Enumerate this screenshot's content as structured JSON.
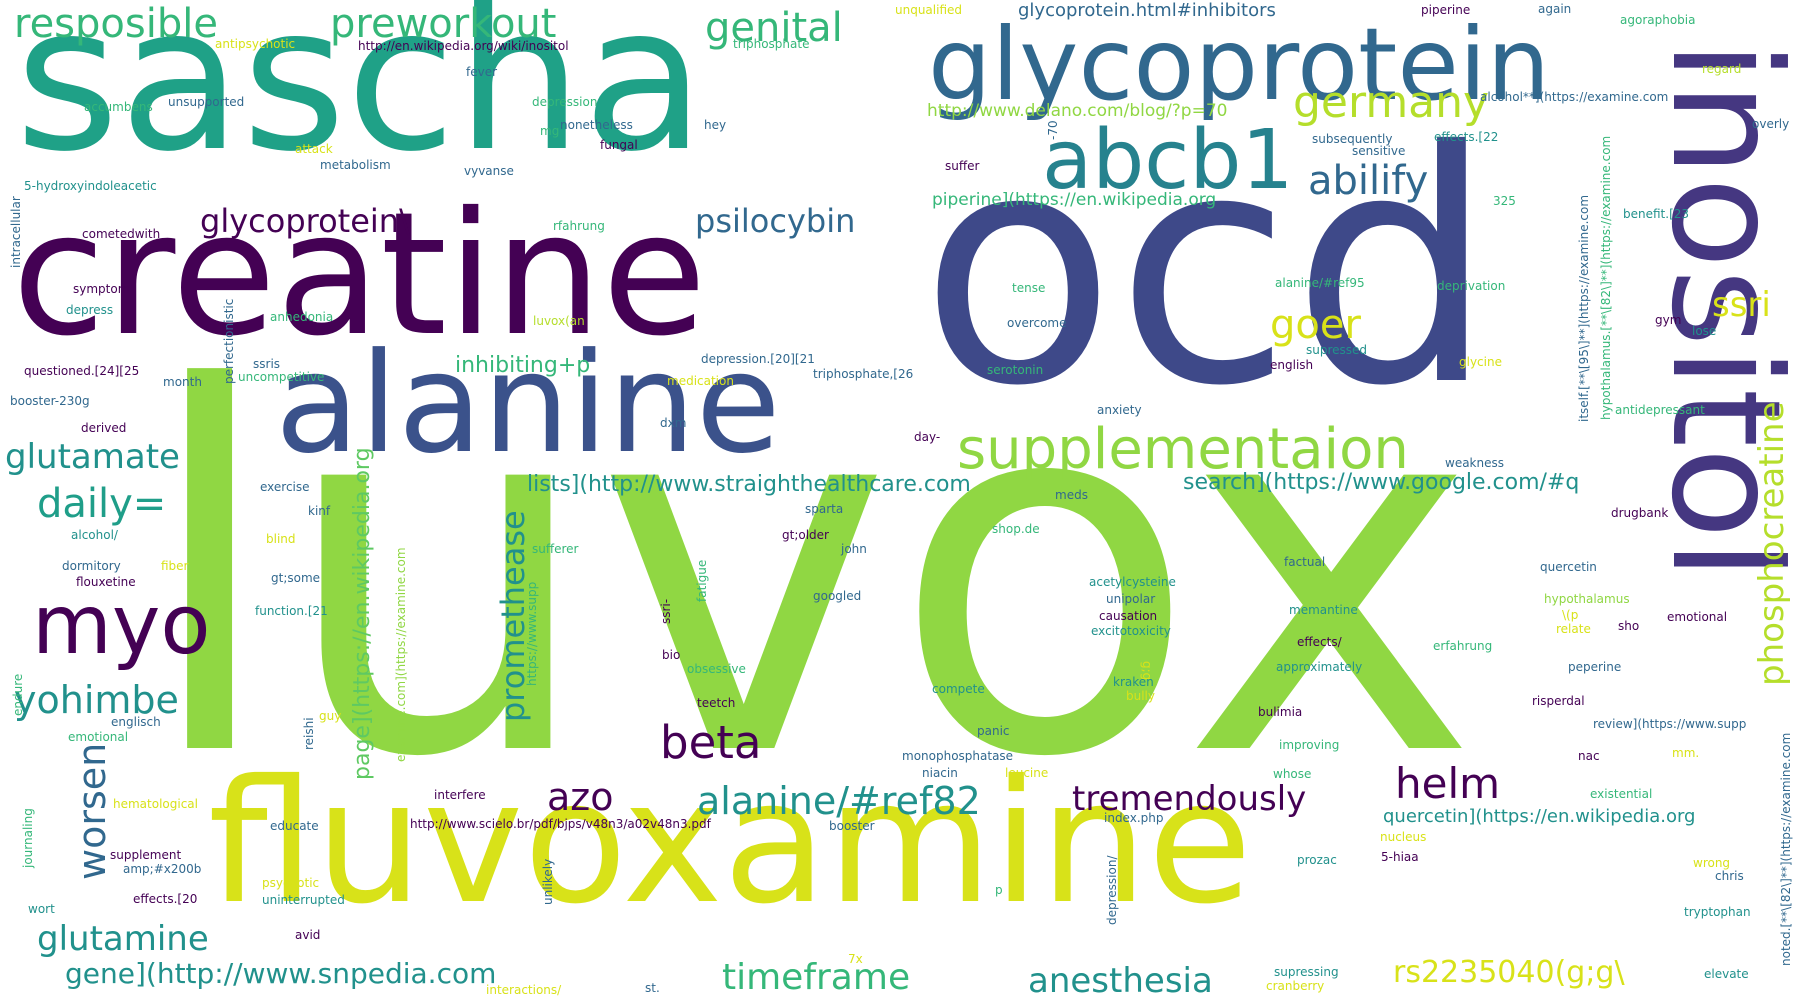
{
  "palette": [
    "#440154",
    "#3b528b",
    "#31688e",
    "#21918c",
    "#35b779",
    "#90d743",
    "#d8e219"
  ],
  "words": [
    {
      "text": "luvox",
      "color": "#90d743"
    },
    {
      "text": "ocd",
      "color": "#3e4989"
    },
    {
      "text": "sascha",
      "color": "#1fa187"
    },
    {
      "text": "creatine",
      "color": "#440154"
    },
    {
      "text": "fluvoxamine",
      "color": "#d8e219"
    },
    {
      "text": "alanine",
      "color": "#3b528b"
    },
    {
      "text": "inositol",
      "color": "#453781"
    },
    {
      "text": "glycoprotein",
      "color": "#31688e"
    },
    {
      "text": "abcb1",
      "color": "#26828e"
    },
    {
      "text": "supplementaion",
      "color": "#90d743"
    },
    {
      "text": "myo",
      "color": "#440154"
    },
    {
      "text": "resposible",
      "color": "#35b779"
    },
    {
      "text": "preworkout",
      "color": "#35b779"
    },
    {
      "text": "genital",
      "color": "#35b779"
    },
    {
      "text": "germany",
      "color": "#b5de2b"
    },
    {
      "text": "abilify",
      "color": "#31688e"
    },
    {
      "text": "glycoprotein\\",
      "color": "#440154"
    },
    {
      "text": "psilocybin",
      "color": "#31688e"
    },
    {
      "text": "goer",
      "color": "#d8e219"
    },
    {
      "text": "ssri",
      "color": "#d8e219"
    },
    {
      "text": "phosphocreatine",
      "color": "#b5de2b"
    },
    {
      "text": "glutamate",
      "color": "#21918c"
    },
    {
      "text": "daily=",
      "color": "#1f9e89"
    },
    {
      "text": "yohimbe",
      "color": "#21918c"
    },
    {
      "text": "worsen",
      "color": "#31688e"
    },
    {
      "text": "glutamine",
      "color": "#21918c"
    },
    {
      "text": "beta",
      "color": "#440154"
    },
    {
      "text": "azo",
      "color": "#440154"
    },
    {
      "text": "alanine/#ref82",
      "color": "#21918c"
    },
    {
      "text": "tremendously",
      "color": "#440154"
    },
    {
      "text": "helm",
      "color": "#440154"
    },
    {
      "text": "promethease",
      "color": "#21918c"
    },
    {
      "text": "timeframe",
      "color": "#35b779"
    },
    {
      "text": "anesthesia",
      "color": "#21918c"
    },
    {
      "text": "gene](http://www.snpedia.com",
      "color": "#21918c"
    },
    {
      "text": "rs2235040(g;g\\",
      "color": "#d8e219"
    },
    {
      "text": "lists](http://www.straighthealthcare.com",
      "color": "#21918c"
    },
    {
      "text": "search](https://www.google.com/#q",
      "color": "#21918c"
    },
    {
      "text": "inhibiting+p",
      "color": "#35b779"
    },
    {
      "text": "page](https://en.wikipedia.org",
      "color": "#5ec962"
    },
    {
      "text": "quercetin](https://en.wikipedia.org",
      "color": "#21918c"
    },
    {
      "text": "http://www.delano.com/blog/?p=70",
      "color": "#90d743"
    },
    {
      "text": "piperine](https://en.wikipedia.org",
      "color": "#35b779"
    },
    {
      "text": "glycoprotein.html#inhibitors",
      "color": "#31688e"
    },
    {
      "text": "http://en.wikipedia.org/wiki/inositol",
      "color": "#440154"
    },
    {
      "text": "http://www.scielo.br/pdf/bjps/v48n3/a02v48n3.pdf",
      "color": "#440154"
    },
    {
      "text": "antipsychotic",
      "color": "#d8e219"
    },
    {
      "text": "triphosphate",
      "color": "#35b779"
    },
    {
      "text": "unqualified",
      "color": "#d8e219"
    },
    {
      "text": "piperine",
      "color": "#440154"
    },
    {
      "text": "again",
      "color": "#31688e"
    },
    {
      "text": "agoraphobia",
      "color": "#35b779"
    },
    {
      "text": "regard",
      "color": "#b5de2b"
    },
    {
      "text": "alcohol**](https://examine.com",
      "color": "#31688e"
    },
    {
      "text": "overly",
      "color": "#31688e"
    },
    {
      "text": "fever",
      "color": "#31688e"
    },
    {
      "text": "accumbens",
      "color": "#35b779"
    },
    {
      "text": "unsupported",
      "color": "#31688e"
    },
    {
      "text": "depression",
      "color": "#35b779"
    },
    {
      "text": "nonetheless",
      "color": "#31688e"
    },
    {
      "text": "hey",
      "color": "#31688e"
    },
    {
      "text": "mg",
      "color": "#35b779"
    },
    {
      "text": "fungal",
      "color": "#440154"
    },
    {
      "text": "attack",
      "color": "#d8e219"
    },
    {
      "text": "metabolism",
      "color": "#31688e"
    },
    {
      "text": "suffer",
      "color": "#440154"
    },
    {
      "text": "subsequently",
      "color": "#31688e"
    },
    {
      "text": "effects.[22",
      "color": "#21918c"
    },
    {
      "text": "sensitive",
      "color": "#31688e"
    },
    {
      "text": "itself.[**\\[95\\]**](https://examine.com",
      "color": "#31688e"
    },
    {
      "text": "hypothalamus.[**\\[82\\]**](https://examine.com",
      "color": "#35b779"
    },
    {
      "text": "benefit.[23",
      "color": "#21918c"
    },
    {
      "text": "intracellular",
      "color": "#31688e"
    },
    {
      "text": "5-hydroxyindoleacetic",
      "color": "#21918c"
    },
    {
      "text": "cometedwith",
      "color": "#440154"
    },
    {
      "text": "vyvanse",
      "color": "#31688e"
    },
    {
      "text": "rfahrung",
      "color": "#35b779"
    },
    {
      "text": "325",
      "color": "#35b779"
    },
    {
      "text": "-70",
      "color": "#31688e"
    },
    {
      "text": "symptom",
      "color": "#440154"
    },
    {
      "text": "depress",
      "color": "#21918c"
    },
    {
      "text": "perfectionistic",
      "color": "#31688e"
    },
    {
      "text": "anhedonia",
      "color": "#35b779"
    },
    {
      "text": "luvox(an",
      "color": "#b5de2b"
    },
    {
      "text": "tense",
      "color": "#35b779"
    },
    {
      "text": "alanine/#ref95",
      "color": "#35b779"
    },
    {
      "text": "deprivation",
      "color": "#35b779"
    },
    {
      "text": "overcome",
      "color": "#31688e"
    },
    {
      "text": "gym",
      "color": "#440154"
    },
    {
      "text": "lose",
      "color": "#21918c"
    },
    {
      "text": "supressed",
      "color": "#21918c"
    },
    {
      "text": "glycine",
      "color": "#d8e219"
    },
    {
      "text": "english",
      "color": "#440154"
    },
    {
      "text": "questioned.[24][25",
      "color": "#440154"
    },
    {
      "text": "ssris",
      "color": "#31688e"
    },
    {
      "text": "uncompetitive",
      "color": "#35b779"
    },
    {
      "text": "month",
      "color": "#31688e"
    },
    {
      "text": "medication",
      "color": "#d8e219"
    },
    {
      "text": "depression.[20][21",
      "color": "#31688e"
    },
    {
      "text": "triphosphate,[26",
      "color": "#31688e"
    },
    {
      "text": "serotonin",
      "color": "#35b779"
    },
    {
      "text": "booster-230g",
      "color": "#31688e"
    },
    {
      "text": "derived",
      "color": "#440154"
    },
    {
      "text": "dxm",
      "color": "#31688e"
    },
    {
      "text": "anxiety",
      "color": "#31688e"
    },
    {
      "text": "antidepressant",
      "color": "#35b779"
    },
    {
      "text": "day-",
      "color": "#440154"
    },
    {
      "text": "weakness",
      "color": "#31688e"
    },
    {
      "text": "exercise",
      "color": "#31688e"
    },
    {
      "text": "kinf",
      "color": "#31688e"
    },
    {
      "text": "sparta",
      "color": "#31688e"
    },
    {
      "text": "meds",
      "color": "#31688e"
    },
    {
      "text": "drugbank",
      "color": "#440154"
    },
    {
      "text": "alcohol/",
      "color": "#21918c"
    },
    {
      "text": "blind",
      "color": "#d8e219"
    },
    {
      "text": "shop.de",
      "color": "#35b779"
    },
    {
      "text": "gt;older",
      "color": "#440154"
    },
    {
      "text": "john",
      "color": "#31688e"
    },
    {
      "text": "sufferer",
      "color": "#35b779"
    },
    {
      "text": "factual",
      "color": "#31688e"
    },
    {
      "text": "dormitory",
      "color": "#31688e"
    },
    {
      "text": "fiber",
      "color": "#d8e219"
    },
    {
      "text": "gt;some",
      "color": "#31688e"
    },
    {
      "text": "quercetin",
      "color": "#31688e"
    },
    {
      "text": "flouxetine",
      "color": "#440154"
    },
    {
      "text": "acetylcysteine",
      "color": "#21918c"
    },
    {
      "text": "unipolar",
      "color": "#31688e"
    },
    {
      "text": "causation",
      "color": "#440154"
    },
    {
      "text": "excitotoxicity",
      "color": "#21918c"
    },
    {
      "text": "googled",
      "color": "#31688e"
    },
    {
      "text": "hypothalamus",
      "color": "#90d743"
    },
    {
      "text": "function.[21",
      "color": "#21918c"
    },
    {
      "text": "fatigue",
      "color": "#35b779"
    },
    {
      "text": "memantine",
      "color": "#21918c"
    },
    {
      "text": "emotional",
      "color": "#440154"
    },
    {
      "text": "ssri-",
      "color": "#440154"
    },
    {
      "text": "https://www.supp",
      "color": "#35b779"
    },
    {
      "text": "examine.com](https://examine.com",
      "color": "#90d743"
    },
    {
      "text": "relate",
      "color": "#d8e219"
    },
    {
      "text": "sho",
      "color": "#440154"
    },
    {
      "text": "effects/",
      "color": "#440154"
    },
    {
      "text": "erfahrung",
      "color": "#35b779"
    },
    {
      "text": "g;g",
      "color": "#d8e219"
    },
    {
      "text": "bio",
      "color": "#440154"
    },
    {
      "text": "obsessive",
      "color": "#35b779"
    },
    {
      "text": "approximately",
      "color": "#21918c"
    },
    {
      "text": "endure",
      "color": "#35b779"
    },
    {
      "text": "kraken",
      "color": "#21918c"
    },
    {
      "text": "bully",
      "color": "#d8e219"
    },
    {
      "text": "peperine",
      "color": "#31688e"
    },
    {
      "text": "compete",
      "color": "#21918c"
    },
    {
      "text": "teetch",
      "color": "#440154"
    },
    {
      "text": "bulimia",
      "color": "#440154"
    },
    {
      "text": "risperdal",
      "color": "#440154"
    },
    {
      "text": "reishi",
      "color": "#31688e"
    },
    {
      "text": "guy",
      "color": "#d8e219"
    },
    {
      "text": "englisch",
      "color": "#31688e"
    },
    {
      "text": "review](https://www.supp",
      "color": "#31688e"
    },
    {
      "text": "noted.[**\\[82\\]**](https://examine.com",
      "color": "#31688e"
    },
    {
      "text": "emotional",
      "color": "#35b779"
    },
    {
      "text": "panic",
      "color": "#31688e"
    },
    {
      "text": "improving",
      "color": "#35b779"
    },
    {
      "text": "monophosphatase",
      "color": "#31688e"
    },
    {
      "text": "nac",
      "color": "#440154"
    },
    {
      "text": "mm.",
      "color": "#d8e219"
    },
    {
      "text": "niacin",
      "color": "#31688e"
    },
    {
      "text": "leucine",
      "color": "#d8e219"
    },
    {
      "text": "whose",
      "color": "#35b779"
    },
    {
      "text": "existential",
      "color": "#35b779"
    },
    {
      "text": "journaling",
      "color": "#35b779"
    },
    {
      "text": "hematological",
      "color": "#d8e219"
    },
    {
      "text": "interfere",
      "color": "#440154"
    },
    {
      "text": "index.php",
      "color": "#31688e"
    },
    {
      "text": "educate",
      "color": "#31688e"
    },
    {
      "text": "booster",
      "color": "#31688e"
    },
    {
      "text": "nucleus",
      "color": "#d8e219"
    },
    {
      "text": "supplement",
      "color": "#440154"
    },
    {
      "text": "5-hiaa",
      "color": "#440154"
    },
    {
      "text": "amp;#x200b",
      "color": "#31688e"
    },
    {
      "text": "unlikely",
      "color": "#31688e"
    },
    {
      "text": "prozac",
      "color": "#21918c"
    },
    {
      "text": "wrong",
      "color": "#d8e219"
    },
    {
      "text": "chris",
      "color": "#31688e"
    },
    {
      "text": "psychotic",
      "color": "#d8e219"
    },
    {
      "text": "depression/",
      "color": "#31688e"
    },
    {
      "text": "effects.[20",
      "color": "#440154"
    },
    {
      "text": "uninterrupted",
      "color": "#21918c"
    },
    {
      "text": "p",
      "color": "#35b779"
    },
    {
      "text": "tryptophan",
      "color": "#21918c"
    },
    {
      "text": "wort",
      "color": "#21918c"
    },
    {
      "text": "avid",
      "color": "#440154"
    },
    {
      "text": "7x",
      "color": "#d8e219"
    },
    {
      "text": "supressing",
      "color": "#21918c"
    },
    {
      "text": "elevate",
      "color": "#21918c"
    },
    {
      "text": "interactions/",
      "color": "#d8e219"
    },
    {
      "text": "st.",
      "color": "#31688e"
    },
    {
      "text": "cranberry",
      "color": "#d8e219"
    },
    {
      "text": "\\(p",
      "color": "#d8e219"
    }
  ]
}
